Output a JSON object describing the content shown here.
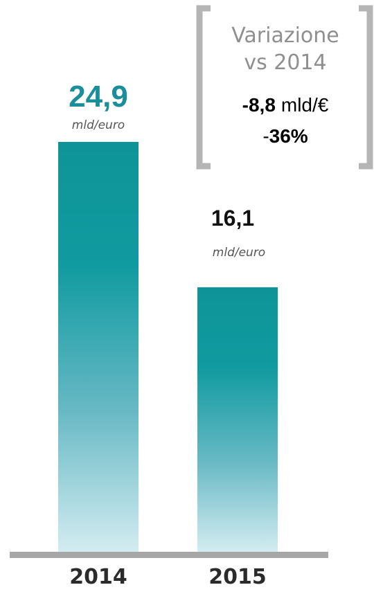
{
  "chart_data": {
    "type": "bar",
    "categories": [
      "2014",
      "2015"
    ],
    "values": [
      24.9,
      16.1
    ],
    "value_labels": [
      "24,9",
      "16,1"
    ],
    "unit_label": "mld/euro",
    "ylim": [
      0,
      24.9
    ],
    "grid": false,
    "colors": {
      "bar_top": "#0e9498",
      "bar_bottom": "#d4edf1",
      "value_2014": "#1a8e99",
      "value_2015": "#111111",
      "baseline": "#a7a7a7",
      "bracket": "#b5b5b5"
    }
  },
  "variation_box": {
    "title_line1": "Variazione",
    "title_line2": "vs 2014",
    "abs_value": "-8,8",
    "abs_unit": "mld/€",
    "pct_sign": "-",
    "pct_value": "36%"
  }
}
